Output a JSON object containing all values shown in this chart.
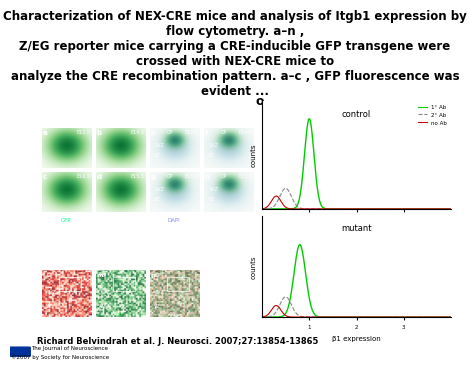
{
  "title": "Characterization of NEX-CRE mice and analysis of Itgb1 expression by flow cytometry. a–n ,\nZ/EG reporter mice carrying a CRE-inducible GFP transgene were crossed with NEX-CRE mice to\nanalyze the CRE recombination pattern. a–c , GFP fluorescence was evident ...",
  "citation": "Richard Belvindrah et al. J. Neurosci. 2007;27:13854-13865",
  "journal_text": "The Journal of Neuroscience",
  "copyright_text": "©2007 by Society for Neuroscience",
  "bg_color": "#ffffff",
  "panel_bg": "#000000",
  "title_fontsize": 8.5,
  "citation_fontsize": 7,
  "flow_control_label": "control",
  "flow_mutant_label": "mutant",
  "flow_xlabel": "β1 expression",
  "flow_ylabel": "counts",
  "legend_entries": [
    "1° Ab",
    "2° Ab",
    "no Ab"
  ],
  "legend_colors": [
    "#00cc00",
    "#888888",
    "#cc0000"
  ],
  "legend_linestyles": [
    "-",
    "--",
    "-"
  ],
  "panel_green_color": "#00ff00",
  "panel_dark_green": "#003300"
}
